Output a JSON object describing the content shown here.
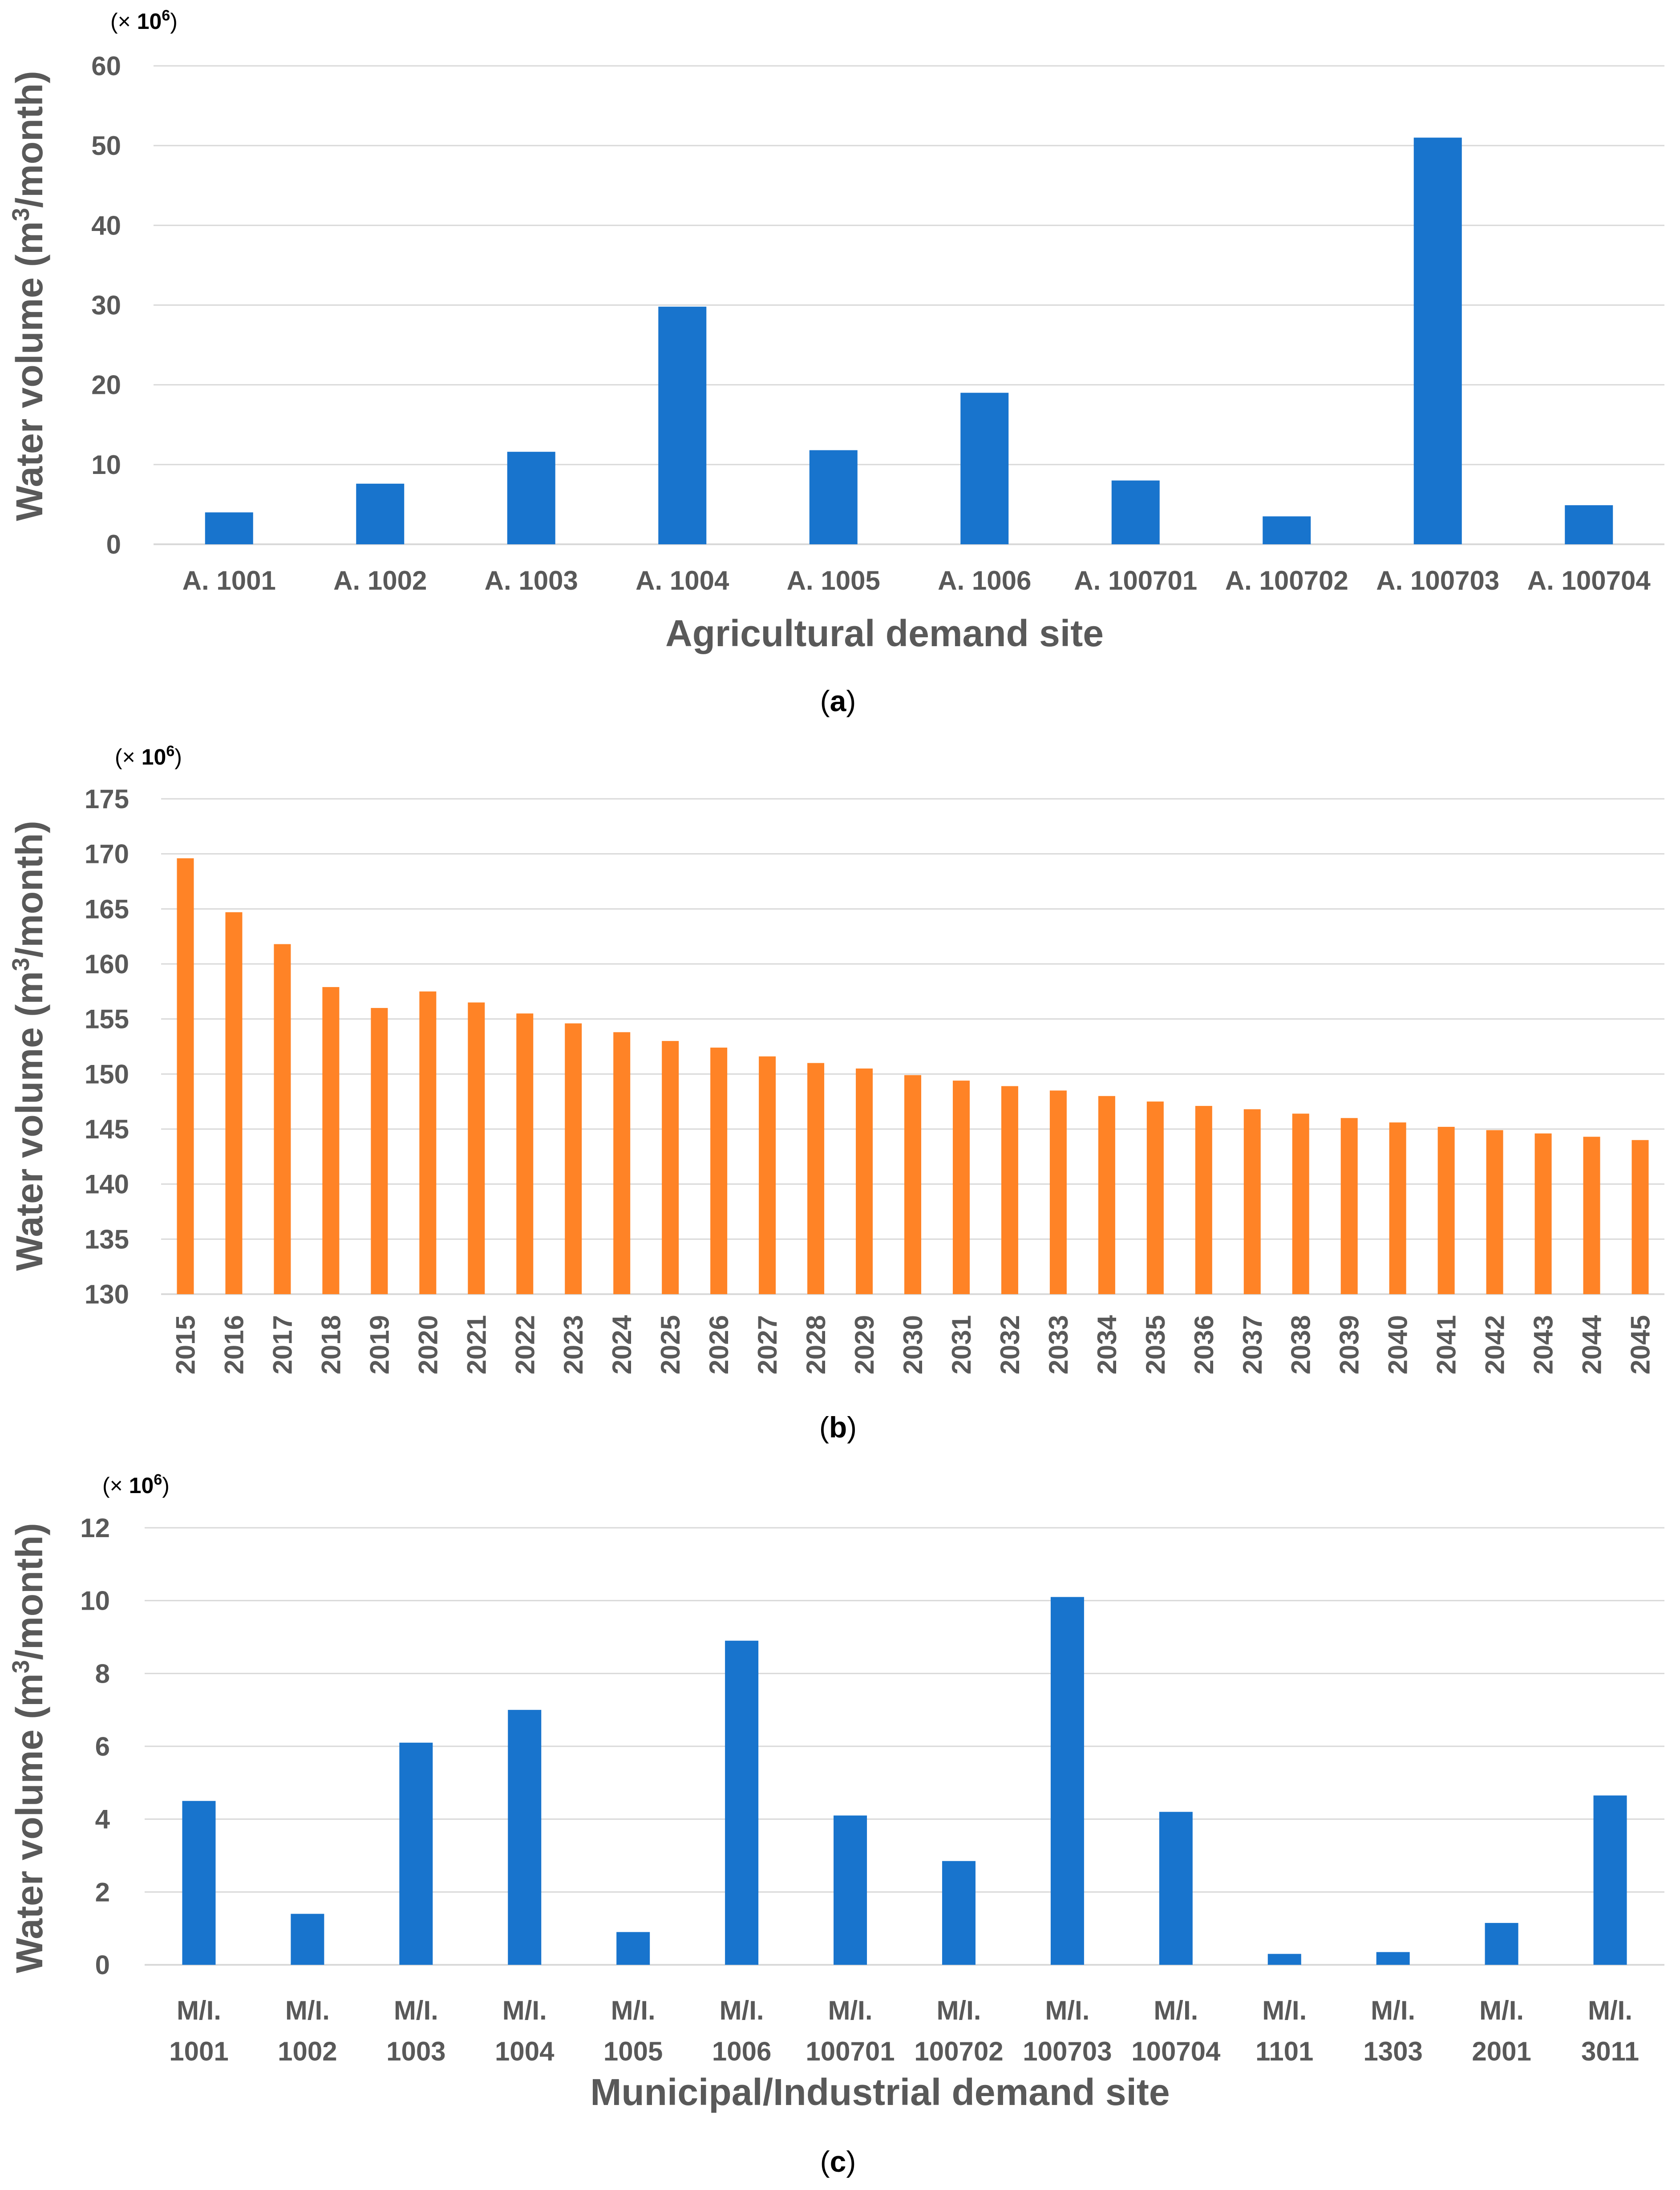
{
  "chart_data": [
    {
      "type": "bar",
      "multiplier_prefix": "(×",
      "multiplier_base": "10",
      "multiplier_exp": "6",
      "multiplier_suffix": ")",
      "ylabel_main": "Water volume (m",
      "ylabel_sup": "3",
      "ylabel_tail": "/month)",
      "xlabel": "Agricultural demand site",
      "caption_letter": "a",
      "ylim": [
        0,
        60
      ],
      "yticks": [
        0,
        10,
        20,
        30,
        40,
        50,
        60
      ],
      "categories": [
        [
          "A. 1001"
        ],
        [
          "A. 1002"
        ],
        [
          "A. 1003"
        ],
        [
          "A. 1004"
        ],
        [
          "A. 1005"
        ],
        [
          "A. 1006"
        ],
        [
          "A. 100701"
        ],
        [
          "A. 100702"
        ],
        [
          "A. 100703"
        ],
        [
          "A. 100704"
        ]
      ],
      "values": [
        4.0,
        7.6,
        11.6,
        29.8,
        11.8,
        19.0,
        8.0,
        3.5,
        51.0,
        4.9
      ],
      "bar_color": "#1874CD",
      "grid": true
    },
    {
      "type": "bar",
      "multiplier_prefix": "(×",
      "multiplier_base": "10",
      "multiplier_exp": "6",
      "multiplier_suffix": ")",
      "ylabel_main": "Water volume (m",
      "ylabel_sup": "3",
      "ylabel_tail": "/month)",
      "xlabel": "",
      "caption_letter": "b",
      "ylim": [
        130,
        175
      ],
      "yticks": [
        130,
        135,
        140,
        145,
        150,
        155,
        160,
        165,
        170,
        175
      ],
      "categories": [
        [
          "2015"
        ],
        [
          "2016"
        ],
        [
          "2017"
        ],
        [
          "2018"
        ],
        [
          "2019"
        ],
        [
          "2020"
        ],
        [
          "2021"
        ],
        [
          "2022"
        ],
        [
          "2023"
        ],
        [
          "2024"
        ],
        [
          "2025"
        ],
        [
          "2026"
        ],
        [
          "2027"
        ],
        [
          "2028"
        ],
        [
          "2029"
        ],
        [
          "2030"
        ],
        [
          "2031"
        ],
        [
          "2032"
        ],
        [
          "2033"
        ],
        [
          "2034"
        ],
        [
          "2035"
        ],
        [
          "2036"
        ],
        [
          "2037"
        ],
        [
          "2038"
        ],
        [
          "2039"
        ],
        [
          "2040"
        ],
        [
          "2041"
        ],
        [
          "2042"
        ],
        [
          "2043"
        ],
        [
          "2044"
        ],
        [
          "2045"
        ]
      ],
      "values": [
        169.6,
        164.7,
        161.8,
        157.9,
        156.0,
        157.5,
        156.5,
        155.5,
        154.6,
        153.8,
        153.0,
        152.4,
        151.6,
        151.0,
        150.5,
        149.9,
        149.4,
        148.9,
        148.5,
        148.0,
        147.5,
        147.1,
        146.8,
        146.4,
        146.0,
        145.6,
        145.2,
        144.9,
        144.6,
        144.3,
        144.0
      ],
      "bar_color": "#FF8326",
      "rotated_labels": true,
      "grid": true
    },
    {
      "type": "bar",
      "multiplier_prefix": "(×",
      "multiplier_base": "10",
      "multiplier_exp": "6",
      "multiplier_suffix": ")",
      "ylabel_main": "Water volume (m",
      "ylabel_sup": "3",
      "ylabel_tail": "/month)",
      "xlabel": "Municipal/Industrial demand site",
      "caption_letter": "c",
      "ylim": [
        0,
        12
      ],
      "yticks": [
        0,
        2,
        4,
        6,
        8,
        10,
        12
      ],
      "categories": [
        [
          "M/I.",
          "1001"
        ],
        [
          "M/I.",
          "1002"
        ],
        [
          "M/I.",
          "1003"
        ],
        [
          "M/I.",
          "1004"
        ],
        [
          "M/I.",
          "1005"
        ],
        [
          "M/I.",
          "1006"
        ],
        [
          "M/I.",
          "100701"
        ],
        [
          "M/I.",
          "100702"
        ],
        [
          "M/I.",
          "100703"
        ],
        [
          "M/I.",
          "100704"
        ],
        [
          "M/I.",
          "1101"
        ],
        [
          "M/I.",
          "1303"
        ],
        [
          "M/I.",
          "2001"
        ],
        [
          "M/I.",
          "3011"
        ]
      ],
      "values": [
        4.5,
        1.4,
        6.1,
        7.0,
        0.9,
        8.9,
        4.1,
        2.85,
        10.1,
        4.2,
        0.3,
        0.35,
        1.15,
        4.65
      ],
      "bar_color": "#1874CD",
      "grid": true
    }
  ]
}
